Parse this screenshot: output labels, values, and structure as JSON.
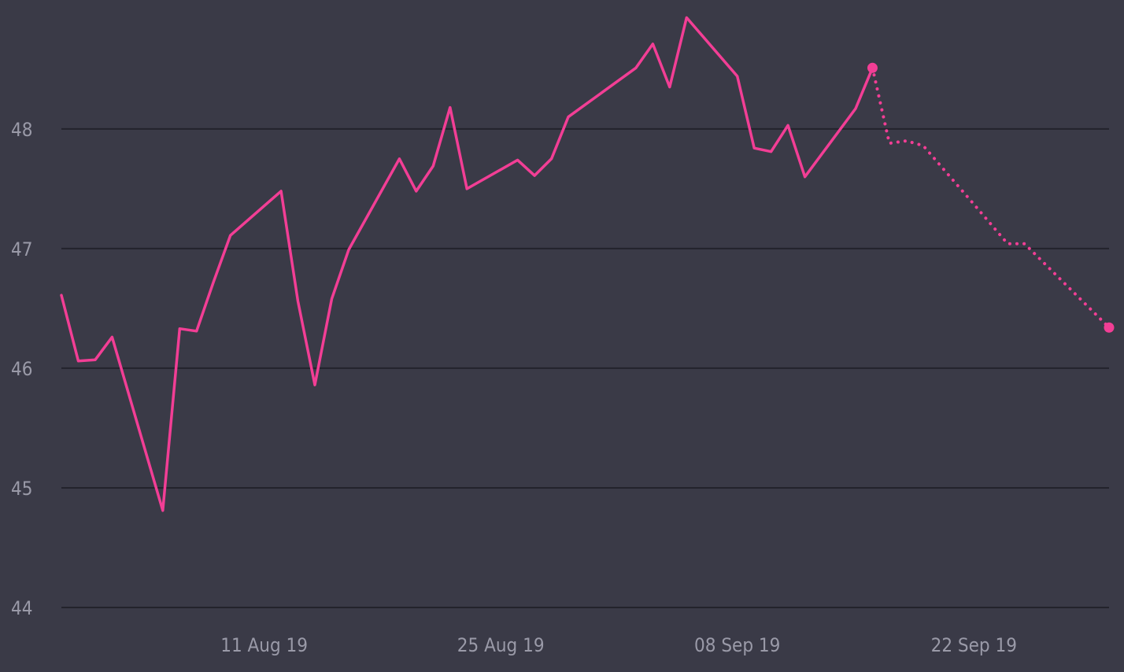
{
  "colors": {
    "background": "#3a3a47",
    "gridline": "#23232c",
    "series": "#f23e95",
    "tick_label": "#9a9aa8"
  },
  "chart_data": {
    "type": "line",
    "title": "",
    "xlabel": "",
    "ylabel": "",
    "ylim": [
      44,
      48.9
    ],
    "xlim": [
      "2019-07-30",
      "2019-09-30"
    ],
    "grid": {
      "horizontal": true,
      "vertical": false
    },
    "legend": "none",
    "y_ticks": [
      {
        "value": 44,
        "label": "44"
      },
      {
        "value": 45,
        "label": "45"
      },
      {
        "value": 46,
        "label": "46"
      },
      {
        "value": 47,
        "label": "47"
      },
      {
        "value": 48,
        "label": "48"
      }
    ],
    "x_ticks": [
      {
        "value": "2019-08-11",
        "label": "11 Aug 19"
      },
      {
        "value": "2019-08-25",
        "label": "25 Aug 19"
      },
      {
        "value": "2019-09-08",
        "label": "08 Sep 19"
      },
      {
        "value": "2019-09-22",
        "label": "22 Sep 19"
      }
    ],
    "series": [
      {
        "style": "solid",
        "color": "#f23e95",
        "end_marker": true,
        "points": [
          [
            "2019-07-30",
            46.61
          ],
          [
            "2019-07-31",
            46.06
          ],
          [
            "2019-08-01",
            46.07
          ],
          [
            "2019-08-02",
            46.26
          ],
          [
            "2019-08-05",
            44.81
          ],
          [
            "2019-08-06",
            46.33
          ],
          [
            "2019-08-07",
            46.31
          ],
          [
            "2019-08-08",
            46.72
          ],
          [
            "2019-08-09",
            47.11
          ],
          [
            "2019-08-12",
            47.48
          ],
          [
            "2019-08-13",
            46.56
          ],
          [
            "2019-08-14",
            45.86
          ],
          [
            "2019-08-15",
            46.58
          ],
          [
            "2019-08-16",
            46.99
          ],
          [
            "2019-08-19",
            47.75
          ],
          [
            "2019-08-20",
            47.48
          ],
          [
            "2019-08-21",
            47.69
          ],
          [
            "2019-08-22",
            48.18
          ],
          [
            "2019-08-23",
            47.5
          ],
          [
            "2019-08-26",
            47.74
          ],
          [
            "2019-08-27",
            47.61
          ],
          [
            "2019-08-28",
            47.75
          ],
          [
            "2019-08-29",
            48.1
          ],
          [
            "2019-09-02",
            48.51
          ],
          [
            "2019-09-03",
            48.71
          ],
          [
            "2019-09-04",
            48.35
          ],
          [
            "2019-09-05",
            48.93
          ],
          [
            "2019-09-08",
            48.44
          ],
          [
            "2019-09-09",
            47.84
          ],
          [
            "2019-09-10",
            47.81
          ],
          [
            "2019-09-11",
            48.03
          ],
          [
            "2019-09-12",
            47.6
          ],
          [
            "2019-09-15",
            48.17
          ],
          [
            "2019-09-16",
            48.51
          ]
        ]
      },
      {
        "style": "dotted",
        "color": "#f23e95",
        "end_marker": true,
        "points": [
          [
            "2019-09-16",
            48.51
          ],
          [
            "2019-09-17",
            47.88
          ],
          [
            "2019-09-18",
            47.9
          ],
          [
            "2019-09-19",
            47.86
          ],
          [
            "2019-09-22",
            47.37
          ],
          [
            "2019-09-24",
            47.04
          ],
          [
            "2019-09-25",
            47.04
          ],
          [
            "2019-09-30",
            46.34
          ]
        ]
      }
    ]
  }
}
